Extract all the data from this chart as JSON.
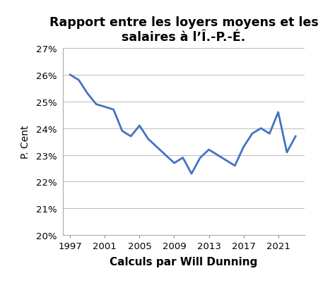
{
  "title": "Rapport entre les loyers moyens et les\nsalaires à l’Î.-P.-É.",
  "xlabel": "Calculs par Will Dunning",
  "ylabel": "P. Cent",
  "years": [
    1997,
    1998,
    1999,
    2000,
    2001,
    2002,
    2003,
    2004,
    2005,
    2006,
    2007,
    2008,
    2009,
    2010,
    2011,
    2012,
    2013,
    2014,
    2015,
    2016,
    2017,
    2018,
    2019,
    2020,
    2021,
    2022,
    2023
  ],
  "values": [
    0.26,
    0.258,
    0.253,
    0.249,
    0.248,
    0.247,
    0.239,
    0.237,
    0.241,
    0.236,
    0.233,
    0.23,
    0.227,
    0.229,
    0.223,
    0.229,
    0.232,
    0.23,
    0.228,
    0.226,
    0.233,
    0.238,
    0.24,
    0.238,
    0.246,
    0.231,
    0.237
  ],
  "ylim": [
    0.2,
    0.27
  ],
  "yticks": [
    0.2,
    0.21,
    0.22,
    0.23,
    0.24,
    0.25,
    0.26,
    0.27
  ],
  "xticks": [
    1997,
    2001,
    2005,
    2009,
    2013,
    2017,
    2021
  ],
  "line_color": "#4472c4",
  "line_width": 2.0,
  "bg_color": "#ffffff",
  "grid_color": "#bbbbbb",
  "title_fontsize": 12.5,
  "xlabel_fontsize": 11,
  "ylabel_fontsize": 10,
  "tick_fontsize": 9.5,
  "xlim_left": 1996.2,
  "xlim_right": 2024.0
}
